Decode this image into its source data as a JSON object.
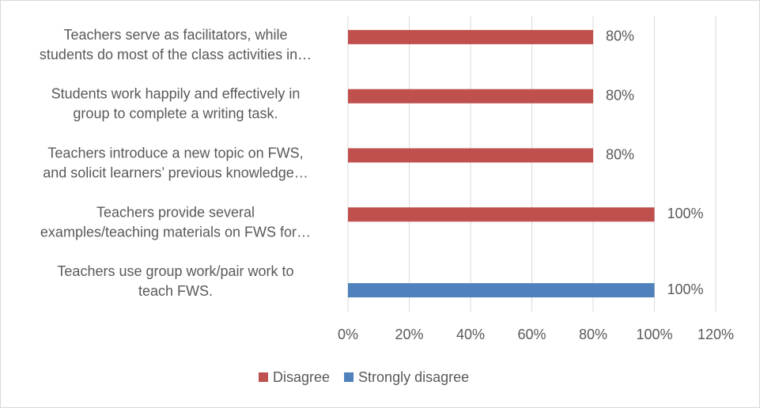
{
  "chart_data": {
    "type": "barh",
    "categories": [
      "Teachers serve as facilitators, while\nstudents do most of the class activities in…",
      "Students work happily and effectively in\ngroup to complete a writing task.",
      "Teachers introduce a new topic on FWS,\nand solicit learners’ previous knowledge…",
      "Teachers provide several\nexamples/teaching materials on FWS for…",
      "Teachers use group work/pair work to\nteach FWS."
    ],
    "series": [
      {
        "name": "Disagree",
        "color": "#c0504d",
        "values": [
          80,
          80,
          80,
          100,
          null
        ],
        "value_labels": [
          "80%",
          "80%",
          "80%",
          "100%",
          null
        ]
      },
      {
        "name": "Strongly disagree",
        "color": "#4f81bd",
        "values": [
          null,
          null,
          null,
          null,
          100
        ],
        "value_labels": [
          null,
          null,
          null,
          null,
          "100%"
        ]
      }
    ],
    "xlim": [
      0,
      120
    ],
    "xticks": [
      {
        "value": 0,
        "label": "0%"
      },
      {
        "value": 20,
        "label": "20%"
      },
      {
        "value": 40,
        "label": "40%"
      },
      {
        "value": 60,
        "label": "60%"
      },
      {
        "value": 80,
        "label": "80%"
      },
      {
        "value": 100,
        "label": "100%"
      },
      {
        "value": 120,
        "label": "120%"
      }
    ],
    "grid": true,
    "legend": "bottom"
  }
}
